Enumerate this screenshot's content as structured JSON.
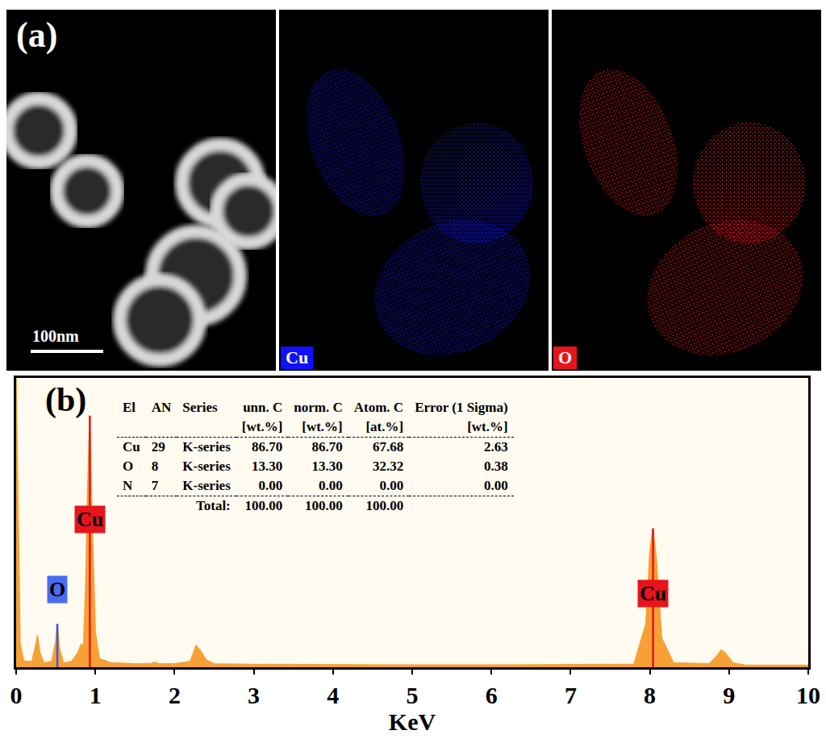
{
  "panel_a": {
    "label": "(a)",
    "scale_bar": "100nm",
    "maps": [
      {
        "text": "Cu",
        "color": "#1010ff"
      },
      {
        "text": "O",
        "color": "#e8141c"
      }
    ]
  },
  "chart_data": {
    "type": "area",
    "panel_label": "(b)",
    "x_label": "KeV",
    "color": "#f7a035",
    "x": [
      0,
      0.02,
      0.05,
      0.1,
      0.2,
      0.25,
      0.27,
      0.3,
      0.35,
      0.45,
      0.5,
      0.52,
      0.55,
      0.6,
      0.7,
      0.78,
      0.82,
      0.85,
      0.88,
      0.9,
      0.93,
      0.96,
      1.0,
      1.05,
      1.2,
      1.5,
      1.7,
      1.75,
      1.8,
      2.0,
      2.2,
      2.27,
      2.32,
      2.4,
      2.5,
      3,
      4,
      5,
      6,
      7,
      7.8,
      7.95,
      8.0,
      8.04,
      8.08,
      8.15,
      8.3,
      8.75,
      8.85,
      8.9,
      8.95,
      9.05,
      9.2,
      10
    ],
    "values": [
      100,
      60,
      8,
      2,
      2,
      8,
      11,
      5,
      1.5,
      2,
      9,
      15,
      6,
      1.5,
      2,
      5,
      8,
      7,
      30,
      60,
      87,
      50,
      12,
      3,
      1.5,
      1.2,
      1.2,
      1.8,
      1.2,
      1.2,
      2,
      7.5,
      6,
      2.5,
      1.2,
      1.0,
      0.8,
      0.8,
      0.8,
      0.8,
      1,
      15,
      40,
      48,
      38,
      10,
      1.5,
      1.2,
      4,
      6,
      5,
      1.5,
      0.8,
      0.7
    ],
    "xlim": [
      0,
      10
    ],
    "xticks": [
      0,
      1,
      2,
      3,
      4,
      5,
      6,
      7,
      8,
      9,
      10
    ],
    "ylim": [
      0,
      100
    ],
    "tick_labels": "x",
    "grid": false,
    "peak_lines": [
      {
        "x": 0.52,
        "y": 15,
        "color": "#3a5bdc"
      },
      {
        "x": 0.93,
        "y": 87,
        "color": "#e8141c"
      },
      {
        "x": 8.04,
        "y": 48,
        "color": "#e8141c"
      }
    ],
    "annotations": [
      {
        "text": "O",
        "x": 0.52,
        "y": 27,
        "color": "#4a6cf0"
      },
      {
        "text": "Cu",
        "x": 0.93,
        "y": 51,
        "color": "#e8141c"
      },
      {
        "text": "Cu",
        "x": 8.04,
        "y": 25.5,
        "color": "#e8141c"
      }
    ],
    "table": {
      "header": [
        "El",
        "AN",
        "Series",
        "unn. C",
        "norm. C",
        "Atom. C",
        "Error (1 Sigma)"
      ],
      "units": [
        null,
        null,
        null,
        "[wt.%]",
        "[wt.%]",
        "[at.%]",
        "[wt.%]"
      ],
      "rows": [
        [
          "Cu",
          "29",
          "K-series",
          "86.70",
          "86.70",
          "67.68",
          "2.63"
        ],
        [
          "O",
          "8",
          "K-series",
          "13.30",
          "13.30",
          "32.32",
          "0.38"
        ],
        [
          "N",
          "7",
          "K-series",
          "0.00",
          "0.00",
          "0.00",
          "0.00"
        ]
      ],
      "total": {
        "label": "Total:",
        "values": [
          "100.00",
          "100.00",
          "100.00"
        ]
      }
    }
  }
}
